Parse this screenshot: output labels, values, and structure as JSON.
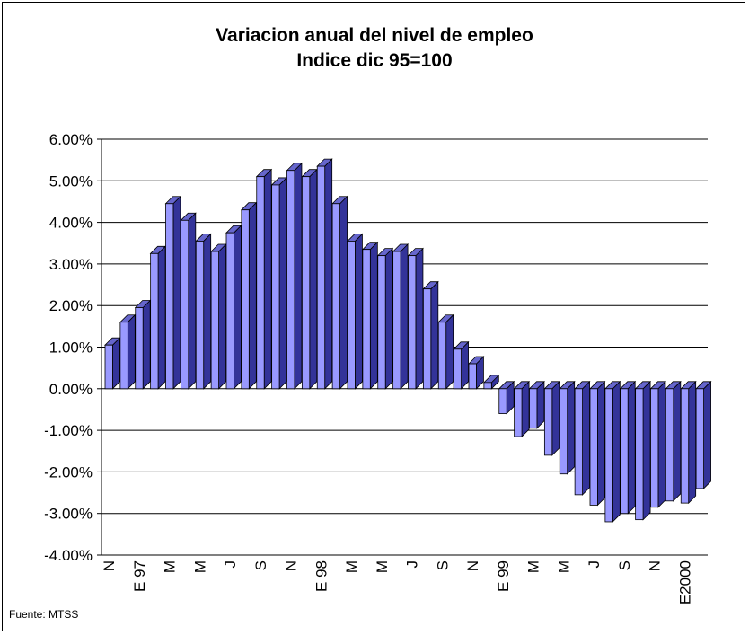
{
  "title_line1": "Variacion anual del nivel de empleo",
  "title_line2": "Indice dic 95=100",
  "source": "Fuente: MTSS",
  "chart_data": {
    "type": "bar",
    "title": "Variacion anual del nivel de empleo",
    "subtitle": "Indice dic 95=100",
    "ylim": [
      -4.0,
      6.0
    ],
    "y_ticks": [
      "6.00%",
      "5.00%",
      "4.00%",
      "3.00%",
      "2.00%",
      "1.00%",
      "0.00%",
      "-1.00%",
      "-2.00%",
      "-3.00%",
      "-4.00%"
    ],
    "x_tick_labels": [
      {
        "label": "N",
        "index": 0
      },
      {
        "label": "E 97",
        "index": 2
      },
      {
        "label": "M",
        "index": 4
      },
      {
        "label": "M",
        "index": 6
      },
      {
        "label": "J",
        "index": 8
      },
      {
        "label": "S",
        "index": 10
      },
      {
        "label": "N",
        "index": 12
      },
      {
        "label": "E 98",
        "index": 14
      },
      {
        "label": "M",
        "index": 16
      },
      {
        "label": "M",
        "index": 18
      },
      {
        "label": "J",
        "index": 20
      },
      {
        "label": "S",
        "index": 22
      },
      {
        "label": "N",
        "index": 24
      },
      {
        "label": "E 99",
        "index": 26
      },
      {
        "label": "M",
        "index": 28
      },
      {
        "label": "M",
        "index": 30
      },
      {
        "label": "J",
        "index": 32
      },
      {
        "label": "S",
        "index": 34
      },
      {
        "label": "N",
        "index": 36
      },
      {
        "label": "E2000",
        "index": 38
      }
    ],
    "values": [
      1.05,
      1.6,
      1.95,
      3.25,
      4.45,
      4.05,
      3.55,
      3.3,
      3.75,
      4.3,
      5.1,
      4.9,
      5.25,
      5.1,
      5.35,
      4.45,
      3.55,
      3.35,
      3.2,
      3.3,
      3.2,
      2.4,
      1.6,
      0.95,
      0.6,
      0.15,
      -0.6,
      -1.15,
      -0.95,
      -1.6,
      -2.05,
      -2.55,
      -2.8,
      -3.2,
      -3.0,
      -3.15,
      -2.85,
      -2.7,
      -2.75,
      -2.4
    ],
    "grid": true,
    "legend": "none",
    "colors": {
      "front": "#9999ff",
      "side": "#333399",
      "top": "#6666cc"
    }
  }
}
